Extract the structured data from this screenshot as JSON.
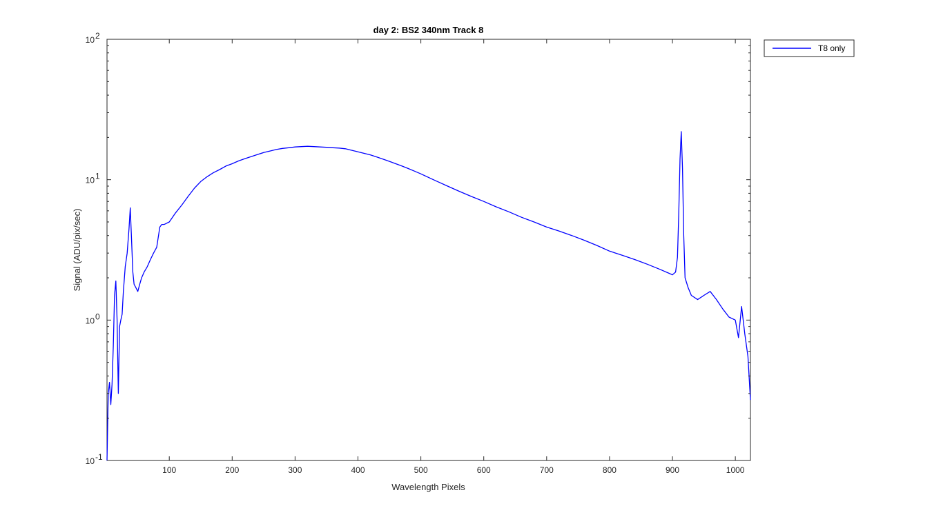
{
  "chart_data": {
    "type": "line",
    "title": "day 2: BS2  340nm  Track 8",
    "xlabel": "Wavelength Pixels",
    "ylabel": "Signal (ADU/pix/sec)",
    "xlim": [
      1,
      1024
    ],
    "ylim": [
      0.1,
      100
    ],
    "yscale": "log",
    "xticks": [
      100,
      200,
      300,
      400,
      500,
      600,
      700,
      800,
      900,
      1000
    ],
    "yticks": [
      {
        "value": 0.1,
        "base": "10",
        "exp": "-1"
      },
      {
        "value": 1,
        "base": "10",
        "exp": "0"
      },
      {
        "value": 10,
        "base": "10",
        "exp": "1"
      },
      {
        "value": 100,
        "base": "10",
        "exp": "2"
      }
    ],
    "grid": false,
    "legend_position": "outside-top-right",
    "series": [
      {
        "name": "T8 only",
        "color": "#0000ff",
        "x": [
          1,
          3,
          5,
          7,
          9,
          11,
          13,
          15,
          17,
          19,
          21,
          23,
          25,
          27,
          30,
          33,
          36,
          38,
          40,
          42,
          44,
          47,
          50,
          53,
          56,
          60,
          65,
          70,
          75,
          80,
          85,
          88,
          92,
          100,
          110,
          120,
          130,
          140,
          150,
          160,
          170,
          180,
          190,
          200,
          210,
          220,
          230,
          240,
          250,
          260,
          270,
          280,
          290,
          300,
          310,
          320,
          330,
          340,
          350,
          360,
          370,
          380,
          390,
          400,
          410,
          420,
          430,
          440,
          450,
          460,
          470,
          480,
          490,
          500,
          520,
          540,
          560,
          580,
          600,
          620,
          640,
          660,
          680,
          700,
          720,
          740,
          760,
          780,
          800,
          820,
          840,
          860,
          880,
          895,
          900,
          905,
          908,
          910,
          912,
          914,
          916,
          918,
          920,
          925,
          930,
          940,
          950,
          960,
          970,
          980,
          990,
          1000,
          1005,
          1010,
          1015,
          1020,
          1024
        ],
        "y": [
          0.1,
          0.3,
          0.36,
          0.25,
          0.35,
          0.65,
          1.5,
          1.9,
          1.0,
          0.3,
          0.9,
          1.0,
          1.1,
          1.6,
          2.4,
          3.0,
          4.5,
          6.3,
          3.8,
          2.2,
          1.8,
          1.7,
          1.6,
          1.8,
          2.0,
          2.2,
          2.4,
          2.7,
          3.0,
          3.3,
          4.6,
          4.8,
          4.8,
          5.0,
          5.8,
          6.6,
          7.6,
          8.7,
          9.7,
          10.5,
          11.2,
          11.8,
          12.5,
          13.0,
          13.6,
          14.1,
          14.6,
          15.1,
          15.6,
          16.0,
          16.4,
          16.7,
          16.9,
          17.1,
          17.2,
          17.3,
          17.2,
          17.1,
          17.0,
          16.9,
          16.8,
          16.6,
          16.2,
          15.8,
          15.4,
          15.0,
          14.5,
          14.0,
          13.5,
          13.0,
          12.5,
          12.0,
          11.5,
          11.0,
          10.0,
          9.1,
          8.3,
          7.6,
          7.0,
          6.4,
          5.9,
          5.4,
          5.0,
          4.6,
          4.3,
          4.0,
          3.7,
          3.4,
          3.1,
          2.9,
          2.7,
          2.5,
          2.3,
          2.15,
          2.1,
          2.2,
          2.8,
          5.5,
          14.0,
          22.0,
          12.0,
          4.0,
          2.0,
          1.7,
          1.5,
          1.4,
          1.5,
          1.6,
          1.4,
          1.2,
          1.05,
          1.0,
          0.75,
          1.25,
          0.8,
          0.55,
          0.27
        ]
      }
    ]
  }
}
